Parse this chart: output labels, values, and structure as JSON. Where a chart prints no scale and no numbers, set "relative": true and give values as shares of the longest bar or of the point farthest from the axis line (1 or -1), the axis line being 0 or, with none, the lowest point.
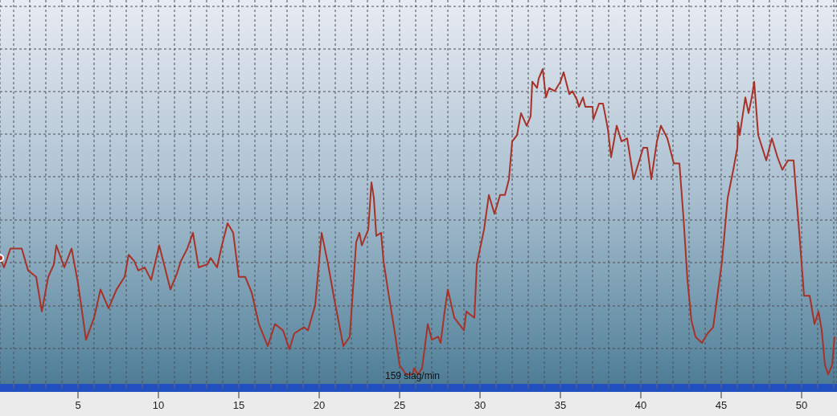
{
  "chart_data": {
    "type": "line",
    "relative": true,
    "x": [
      0.15,
      0.4,
      0.8,
      1.5,
      1.9,
      2.4,
      2.75,
      3.15,
      3.5,
      3.65,
      4.15,
      4.6,
      5.0,
      5.5,
      6.0,
      6.4,
      6.9,
      7.4,
      7.9,
      8.15,
      8.5,
      8.75,
      9.15,
      9.55,
      10.05,
      10.75,
      11.15,
      11.4,
      11.8,
      12.15,
      12.5,
      13.05,
      13.25,
      13.65,
      13.9,
      14.3,
      14.65,
      15.0,
      15.4,
      15.8,
      16.25,
      16.8,
      17.25,
      17.75,
      18.15,
      18.45,
      19.05,
      19.3,
      19.75,
      20.15,
      20.55,
      20.9,
      21.5,
      21.9,
      22.3,
      22.5,
      22.65,
      23.05,
      23.25,
      23.4,
      23.55,
      23.85,
      24.0,
      24.3,
      24.65,
      25.0,
      25.4,
      25.8,
      25.9,
      26.15,
      26.4,
      26.75,
      27.0,
      27.4,
      27.55,
      27.8,
      28.0,
      28.4,
      29.0,
      29.15,
      29.65,
      29.8,
      30.25,
      30.55,
      30.9,
      31.25,
      31.55,
      31.8,
      32.0,
      32.3,
      32.55,
      32.9,
      33.15,
      33.25,
      33.55,
      33.65,
      33.9,
      34.1,
      34.3,
      34.65,
      35.0,
      35.2,
      35.55,
      35.75,
      36.05,
      36.15,
      36.4,
      36.55,
      37.0,
      37.05,
      37.4,
      37.65,
      37.95,
      38.15,
      38.5,
      38.8,
      39.15,
      39.55,
      40.15,
      40.4,
      40.65,
      41.0,
      41.25,
      41.65,
      41.9,
      42.05,
      42.4,
      42.65,
      42.9,
      43.15,
      43.4,
      43.8,
      44.15,
      44.5,
      45.05,
      45.4,
      45.75,
      46.0,
      46.05,
      46.15,
      46.5,
      46.7,
      46.9,
      47.05,
      47.3,
      47.8,
      48.15,
      48.5,
      48.8,
      49.15,
      49.5,
      49.65,
      49.9,
      50.15,
      50.5,
      50.8,
      51.05,
      51.25,
      51.45,
      51.65,
      51.9,
      52.05
    ],
    "series": [
      {
        "color": "#a83228",
        "values": [
          0.4,
          0.37,
          0.43,
          0.43,
          0.36,
          0.34,
          0.23,
          0.34,
          0.38,
          0.44,
          0.37,
          0.43,
          0.32,
          0.14,
          0.21,
          0.3,
          0.24,
          0.3,
          0.34,
          0.41,
          0.39,
          0.36,
          0.37,
          0.33,
          0.44,
          0.3,
          0.35,
          0.39,
          0.43,
          0.48,
          0.37,
          0.38,
          0.4,
          0.37,
          0.43,
          0.51,
          0.48,
          0.34,
          0.34,
          0.29,
          0.19,
          0.12,
          0.19,
          0.17,
          0.11,
          0.16,
          0.18,
          0.17,
          0.25,
          0.48,
          0.38,
          0.28,
          0.12,
          0.15,
          0.45,
          0.48,
          0.44,
          0.49,
          0.64,
          0.59,
          0.47,
          0.48,
          0.39,
          0.29,
          0.18,
          0.06,
          0.03,
          0.03,
          0.05,
          0.03,
          0.05,
          0.19,
          0.14,
          0.15,
          0.13,
          0.23,
          0.3,
          0.21,
          0.17,
          0.23,
          0.21,
          0.38,
          0.49,
          0.6,
          0.54,
          0.6,
          0.6,
          0.65,
          0.77,
          0.79,
          0.86,
          0.82,
          0.85,
          0.96,
          0.94,
          0.97,
          1,
          0.91,
          0.94,
          0.93,
          0.96,
          0.99,
          0.92,
          0.93,
          0.9,
          0.88,
          0.91,
          0.88,
          0.88,
          0.84,
          0.89,
          0.89,
          0.81,
          0.72,
          0.82,
          0.77,
          0.78,
          0.65,
          0.75,
          0.75,
          0.65,
          0.77,
          0.82,
          0.78,
          0.73,
          0.7,
          0.7,
          0.53,
          0.33,
          0.2,
          0.15,
          0.13,
          0.16,
          0.18,
          0.39,
          0.59,
          0.68,
          0.75,
          0.83,
          0.79,
          0.91,
          0.86,
          0.91,
          0.96,
          0.79,
          0.71,
          0.78,
          0.72,
          0.68,
          0.71,
          0.71,
          0.61,
          0.45,
          0.28,
          0.28,
          0.19,
          0.23,
          0.17,
          0.06,
          0.03,
          0.06,
          0.15
        ]
      }
    ],
    "xlim": [
      0.15,
      52.2
    ],
    "xticks": [
      {
        "value": 1,
        "label": null
      },
      {
        "value": 2,
        "label": null
      },
      {
        "value": 3,
        "label": null
      },
      {
        "value": 4,
        "label": null
      },
      5,
      {
        "value": 6,
        "label": null
      },
      {
        "value": 7,
        "label": null
      },
      {
        "value": 8,
        "label": null
      },
      {
        "value": 9,
        "label": null
      },
      10,
      {
        "value": 11,
        "label": null
      },
      {
        "value": 12,
        "label": null
      },
      {
        "value": 13,
        "label": null
      },
      {
        "value": 14,
        "label": null
      },
      15,
      {
        "value": 16,
        "label": null
      },
      {
        "value": 17,
        "label": null
      },
      {
        "value": 18,
        "label": null
      },
      {
        "value": 19,
        "label": null
      },
      20,
      {
        "value": 21,
        "label": null
      },
      {
        "value": 22,
        "label": null
      },
      {
        "value": 23,
        "label": null
      },
      {
        "value": 24,
        "label": null
      },
      25,
      {
        "value": 26,
        "label": null
      },
      {
        "value": 27,
        "label": null
      },
      {
        "value": 28,
        "label": null
      },
      {
        "value": 29,
        "label": null
      },
      30,
      {
        "value": 31,
        "label": null
      },
      {
        "value": 32,
        "label": null
      },
      {
        "value": 33,
        "label": null
      },
      {
        "value": 34,
        "label": null
      },
      35,
      {
        "value": 36,
        "label": null
      },
      {
        "value": 37,
        "label": null
      },
      {
        "value": 38,
        "label": null
      },
      {
        "value": 39,
        "label": null
      },
      40,
      {
        "value": 41,
        "label": null
      },
      {
        "value": 42,
        "label": null
      },
      {
        "value": 43,
        "label": null
      },
      {
        "value": 44,
        "label": null
      },
      45,
      {
        "value": 46,
        "label": null
      },
      {
        "value": 47,
        "label": null
      },
      {
        "value": 48,
        "label": null
      },
      {
        "value": 49,
        "label": null
      },
      50,
      {
        "value": 51,
        "label": null
      },
      {
        "value": 52,
        "label": null
      }
    ],
    "tick_labels": "x",
    "grid": true,
    "annotations": [
      {
        "text": "159 slag/min",
        "x": 25.8,
        "y": 0.03
      }
    ]
  }
}
